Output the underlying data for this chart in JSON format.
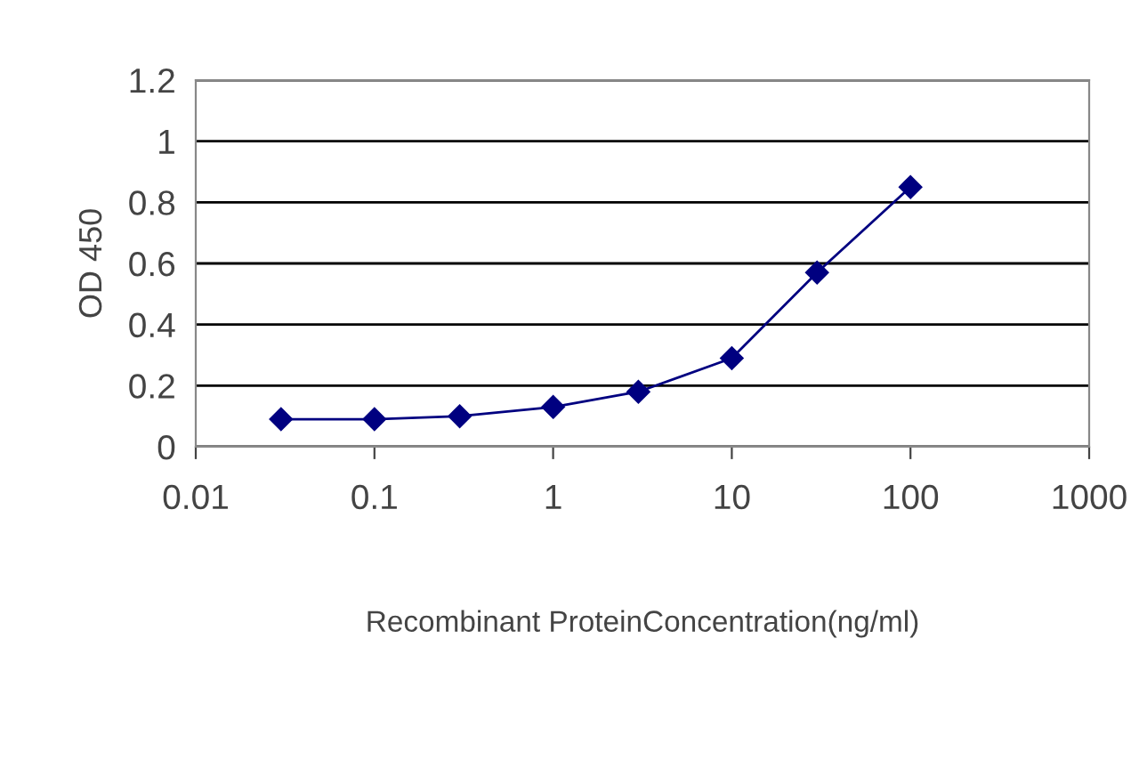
{
  "chart_data": {
    "type": "line",
    "xlabel": "Recombinant ProteinConcentration(ng/ml)",
    "ylabel": "OD 450",
    "x": [
      0.03,
      0.1,
      0.3,
      1,
      3,
      10,
      30,
      100
    ],
    "series": [
      {
        "color": "#000080",
        "values": [
          0.09,
          0.09,
          0.1,
          0.13,
          0.18,
          0.29,
          0.57,
          0.85
        ]
      }
    ],
    "log": "x",
    "xlim": [
      0.01,
      1000
    ],
    "xticks": [
      0.01,
      0.1,
      1,
      10,
      100,
      1000
    ],
    "ylim": [
      0,
      1.2
    ],
    "yticks": [
      0,
      0.2,
      0.4,
      0.6,
      0.8,
      1,
      1.2
    ],
    "grid": "y",
    "marker": "diamond",
    "line_style": "solid"
  }
}
